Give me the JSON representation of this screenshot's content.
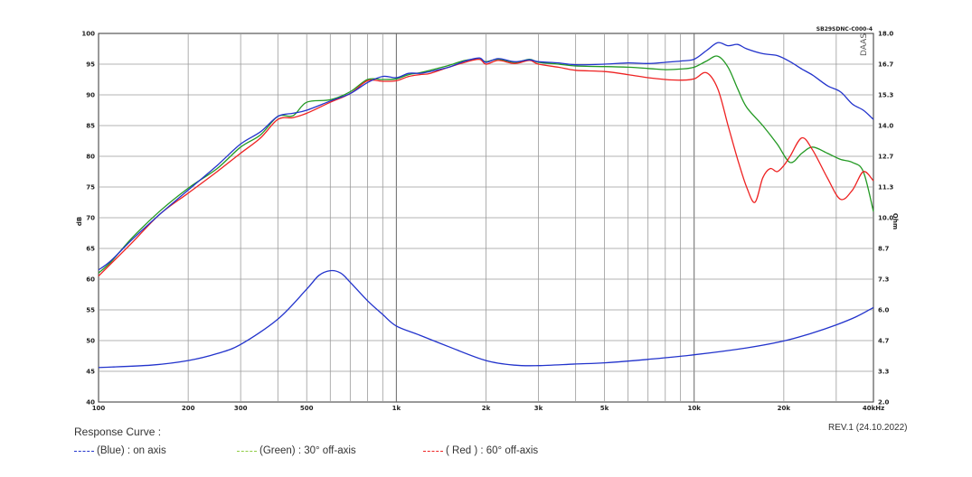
{
  "chart_data": {
    "type": "line",
    "x_scale": "log",
    "xlim": [
      100,
      40000
    ],
    "ylim_left": [
      40,
      100
    ],
    "ylim_right": [
      2.0,
      18.0
    ],
    "ylabel_left": "dB",
    "ylabel_right": "Ohm",
    "x_tick_labels": [
      {
        "value": 100,
        "label": "100"
      },
      {
        "value": 200,
        "label": "200"
      },
      {
        "value": 300,
        "label": "300"
      },
      {
        "value": 500,
        "label": "500"
      },
      {
        "value": 1000,
        "label": "1k"
      },
      {
        "value": 2000,
        "label": "2k"
      },
      {
        "value": 3000,
        "label": "3k"
      },
      {
        "value": 5000,
        "label": "5k"
      },
      {
        "value": 10000,
        "label": "10k"
      },
      {
        "value": 20000,
        "label": "20k"
      },
      {
        "value": 40000,
        "label": "40kHz"
      }
    ],
    "y_left_ticks": [
      "100",
      "95",
      "90",
      "85",
      "80",
      "75",
      "70",
      "65",
      "60",
      "55",
      "50",
      "45",
      "40"
    ],
    "y_right_ticks": [
      "18.0",
      "16.7",
      "15.3",
      "14.0",
      "12.7",
      "11.3",
      "10.0",
      "8.7",
      "7.3",
      "6.0",
      "4.7",
      "3.3",
      "2.0"
    ],
    "model_label": "SB29SDNC-C000-4",
    "logo_text": "DAAS",
    "grid": true,
    "series": [
      {
        "name": "(Blue)  : on axis",
        "color": "#2233cc",
        "axis": "left",
        "x": [
          100,
          110,
          130,
          160,
          200,
          250,
          300,
          350,
          400,
          450,
          500,
          600,
          700,
          800,
          900,
          1000,
          1100,
          1200,
          1300,
          1500,
          1700,
          1900,
          2000,
          2200,
          2500,
          2800,
          3000,
          3500,
          4000,
          5000,
          6000,
          7000,
          8000,
          9000,
          10000,
          11000,
          12000,
          13000,
          14000,
          15000,
          17000,
          19000,
          21000,
          23000,
          25000,
          28000,
          31000,
          34000,
          37000,
          40000
        ],
        "y": [
          61.5,
          63.0,
          66.5,
          70.5,
          74.5,
          78.5,
          82.0,
          84.0,
          86.5,
          87.0,
          87.5,
          89.0,
          90.2,
          92.0,
          93.0,
          92.8,
          93.5,
          93.5,
          93.8,
          94.5,
          95.5,
          96.0,
          95.3,
          95.9,
          95.4,
          95.7,
          95.4,
          95.2,
          94.9,
          95.0,
          95.2,
          95.1,
          95.3,
          95.5,
          95.8,
          97.2,
          98.5,
          98.0,
          98.2,
          97.5,
          96.7,
          96.4,
          95.4,
          94.2,
          93.2,
          91.5,
          90.5,
          88.5,
          87.5,
          86.0
        ]
      },
      {
        "name": "(Green) : 30° off-axis",
        "color": "#229922",
        "axis": "left",
        "x": [
          100,
          110,
          130,
          160,
          200,
          250,
          300,
          350,
          400,
          450,
          500,
          600,
          700,
          800,
          900,
          1000,
          1100,
          1200,
          1300,
          1500,
          1700,
          1900,
          2000,
          2200,
          2500,
          2800,
          3000,
          3500,
          4000,
          5000,
          6000,
          7000,
          8000,
          9000,
          10000,
          11000,
          12000,
          13000,
          14000,
          15000,
          17000,
          19000,
          21000,
          23000,
          25000,
          28000,
          31000,
          34000,
          37000,
          40000
        ],
        "y": [
          61.0,
          62.8,
          66.8,
          71.0,
          74.8,
          78.0,
          81.5,
          83.5,
          86.5,
          86.6,
          88.8,
          89.2,
          90.5,
          92.5,
          92.5,
          92.6,
          93.3,
          93.6,
          94.0,
          94.8,
          95.6,
          95.8,
          95.4,
          95.8,
          95.3,
          95.8,
          95.3,
          95.0,
          94.7,
          94.6,
          94.5,
          94.3,
          94.1,
          94.2,
          94.5,
          95.5,
          96.3,
          94.5,
          91.0,
          88.0,
          85.0,
          82.0,
          79.0,
          80.5,
          81.5,
          80.5,
          79.5,
          79.0,
          77.5,
          71.0
        ]
      },
      {
        "name": "( Red ) : 60° off-axis",
        "color": "#ee2222",
        "axis": "left",
        "x": [
          100,
          110,
          130,
          160,
          200,
          250,
          300,
          350,
          400,
          450,
          500,
          600,
          700,
          800,
          900,
          1000,
          1100,
          1200,
          1300,
          1500,
          1700,
          1900,
          2000,
          2200,
          2500,
          2800,
          3000,
          3500,
          4000,
          5000,
          6000,
          7000,
          8000,
          9000,
          10000,
          11000,
          12000,
          13000,
          14000,
          15000,
          16000,
          17000,
          18000,
          19000,
          20000,
          21000,
          23000,
          25000,
          28000,
          31000,
          34000,
          37000,
          40000
        ],
        "y": [
          60.5,
          62.5,
          66.0,
          70.5,
          74.0,
          77.5,
          80.5,
          83.0,
          86.0,
          86.3,
          87.0,
          88.8,
          90.2,
          92.3,
          92.2,
          92.3,
          93.0,
          93.3,
          93.5,
          94.5,
          95.3,
          95.8,
          95.0,
          95.6,
          95.1,
          95.6,
          95.0,
          94.5,
          94.0,
          93.8,
          93.3,
          92.8,
          92.5,
          92.4,
          92.6,
          93.6,
          91.0,
          85.0,
          79.5,
          75.0,
          72.5,
          76.5,
          78.0,
          77.5,
          78.5,
          80.0,
          83.0,
          81.0,
          76.5,
          73.0,
          74.5,
          77.5,
          76.0
        ]
      },
      {
        "name": "Impedance",
        "color": "#2233cc",
        "axis": "right",
        "x": [
          100,
          150,
          200,
          250,
          300,
          400,
          500,
          550,
          600,
          650,
          700,
          800,
          900,
          1000,
          1200,
          1500,
          2000,
          2500,
          3000,
          4000,
          5000,
          7000,
          10000,
          15000,
          20000,
          25000,
          30000,
          35000,
          40000
        ],
        "y": [
          3.5,
          3.6,
          3.8,
          4.1,
          4.5,
          5.6,
          6.9,
          7.5,
          7.7,
          7.6,
          7.2,
          6.4,
          5.8,
          5.3,
          4.9,
          4.4,
          3.8,
          3.6,
          3.58,
          3.65,
          3.7,
          3.85,
          4.05,
          4.35,
          4.65,
          5.0,
          5.35,
          5.7,
          6.1
        ]
      }
    ]
  },
  "caption": {
    "title": "Response Curve :",
    "revision": "REV.1 (24.10.2022)"
  },
  "legend": [
    {
      "label": "(Blue)  : on axis",
      "color": "#2233cc"
    },
    {
      "label": "(Green) : 30° off-axis",
      "color": "#8fcc44"
    },
    {
      "label": "( Red ) : 60° off-axis",
      "color": "#ee2222"
    }
  ]
}
